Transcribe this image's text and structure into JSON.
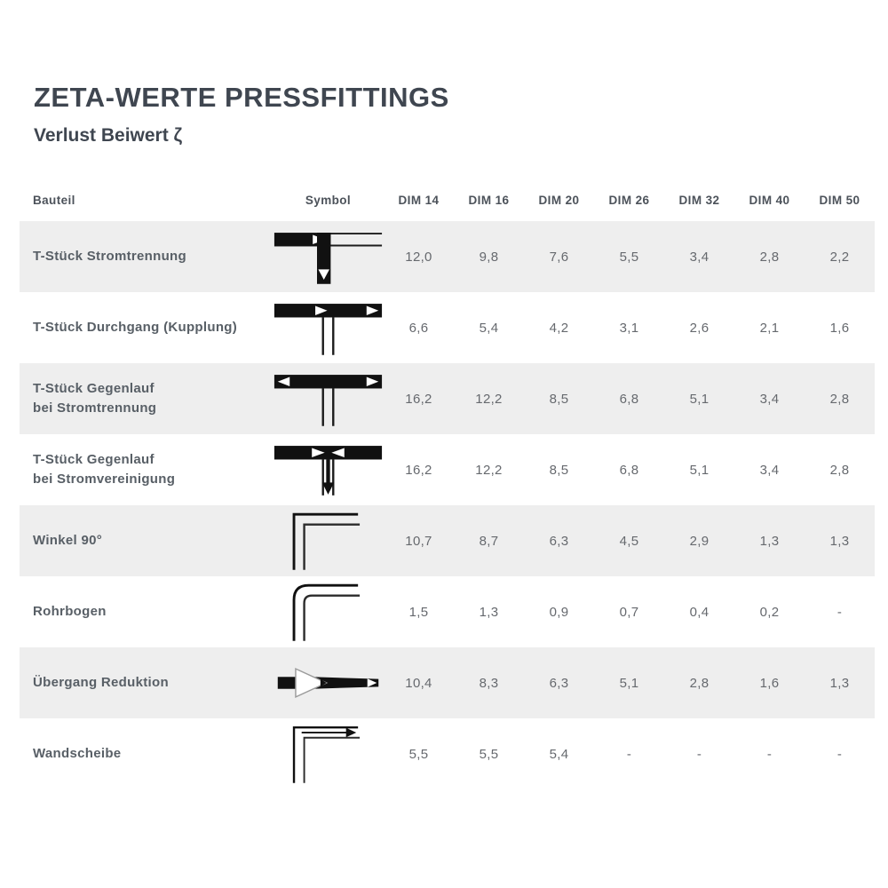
{
  "page": {
    "title": "ZETA-WERTE PRESSFITTINGS",
    "subtitle": "Verlust Beiwert ζ"
  },
  "table": {
    "columns": [
      "Bauteil",
      "Symbol",
      "DIM 14",
      "DIM 16",
      "DIM 20",
      "DIM 26",
      "DIM 32",
      "DIM 40",
      "DIM 50"
    ],
    "rows": [
      {
        "name": "T-Stück Stromtrennung",
        "icon": "tee-flow-split",
        "values": [
          "12,0",
          "9,8",
          "7,6",
          "5,5",
          "3,4",
          "2,8",
          "2,2"
        ]
      },
      {
        "name": "T-Stück Durchgang (Kupplung)",
        "icon": "tee-flow-through",
        "values": [
          "6,6",
          "5,4",
          "4,2",
          "3,1",
          "2,6",
          "2,1",
          "1,6"
        ]
      },
      {
        "name": "T-Stück Gegenlauf\nbei Stromtrennung",
        "icon": "tee-counterflow-split",
        "values": [
          "16,2",
          "12,2",
          "8,5",
          "6,8",
          "5,1",
          "3,4",
          "2,8"
        ]
      },
      {
        "name": "T-Stück Gegenlauf\nbei Stromvereinigung",
        "icon": "tee-counterflow-merge",
        "values": [
          "16,2",
          "12,2",
          "8,5",
          "6,8",
          "5,1",
          "3,4",
          "2,8"
        ]
      },
      {
        "name": "Winkel 90°",
        "icon": "elbow-90",
        "values": [
          "10,7",
          "8,7",
          "6,3",
          "4,5",
          "2,9",
          "1,3",
          "1,3"
        ]
      },
      {
        "name": "Rohrbogen",
        "icon": "pipe-bend",
        "values": [
          "1,5",
          "1,3",
          "0,9",
          "0,7",
          "0,4",
          "0,2",
          "-"
        ]
      },
      {
        "name": "Übergang Reduktion",
        "icon": "reducer",
        "values": [
          "10,4",
          "8,3",
          "6,3",
          "5,1",
          "2,8",
          "1,6",
          "1,3"
        ]
      },
      {
        "name": "Wandscheibe",
        "icon": "wall-plate-elbow",
        "values": [
          "5,5",
          "5,5",
          "5,4",
          "-",
          "-",
          "-",
          "-"
        ]
      }
    ]
  },
  "colors": {
    "title_text": "#3f4650",
    "header_text": "#4c525a",
    "component_text": "#585f66",
    "value_text": "#66696e",
    "row_alt_background": "#eeeeee",
    "symbol_ink": "#111111"
  }
}
